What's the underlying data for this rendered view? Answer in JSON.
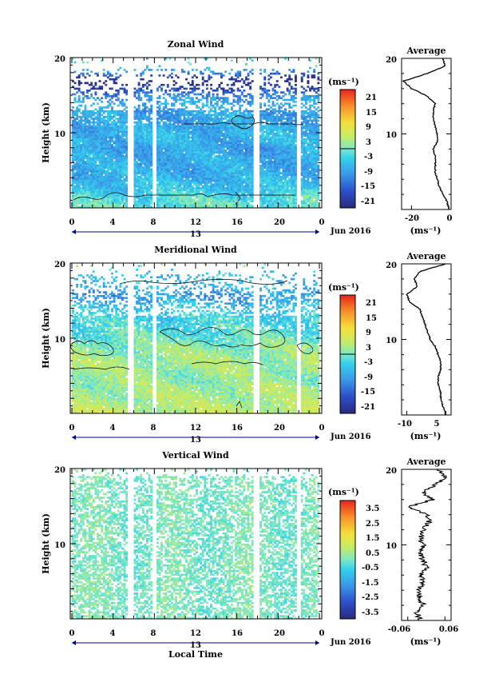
{
  "chart_data": [
    {
      "type": "heatmap",
      "title": "Zonal Wind",
      "ylabel": "Height (km)",
      "ylim": [
        0,
        20
      ],
      "y_ticks": [
        "20",
        "10"
      ],
      "xlim": [
        0,
        24
      ],
      "x_ticks": [
        "0",
        "4",
        "8",
        "12",
        "16",
        "20",
        "0"
      ],
      "date_center": "13",
      "date_label": "Jun 2016",
      "colorbar": {
        "unit": "(ms⁻¹)",
        "range": [
          -24,
          24
        ],
        "tick_labels": [
          "21",
          "15",
          "9",
          "3",
          "-3",
          "-9",
          "-15",
          "-21"
        ]
      },
      "data_gaps_hours": [
        [
          5.4,
          5.9
        ],
        [
          7.8,
          8.3
        ],
        [
          17.7,
          18.2
        ],
        [
          21.8,
          22.3
        ]
      ],
      "profile": {
        "title": "Average",
        "xlabel": "(ms⁻¹)",
        "xlim": [
          -25,
          0
        ],
        "x_ticks": [
          "-20",
          "0"
        ],
        "y_ticks": [
          "20",
          "10"
        ],
        "height_km": [
          0,
          1,
          2,
          3,
          4,
          5,
          6,
          7,
          8,
          9,
          10,
          11,
          12,
          13,
          14,
          15,
          16,
          17,
          18,
          19,
          20
        ],
        "values": [
          -1,
          -2,
          -4,
          -6,
          -7,
          -8,
          -8,
          -8,
          -9,
          -7,
          -7,
          -8,
          -9,
          -9,
          -8,
          -12,
          -20,
          -24,
          -12,
          -3,
          -4
        ]
      }
    },
    {
      "type": "heatmap",
      "title": "Meridional Wind",
      "ylabel": "Height (km)",
      "ylim": [
        0,
        20
      ],
      "y_ticks": [
        "20",
        "10"
      ],
      "xlim": [
        0,
        24
      ],
      "x_ticks": [
        "0",
        "4",
        "8",
        "12",
        "16",
        "20",
        "0"
      ],
      "date_center": "13",
      "date_label": "Jun 2016",
      "colorbar": {
        "unit": "(ms⁻¹)",
        "range": [
          -24,
          24
        ],
        "tick_labels": [
          "21",
          "15",
          "9",
          "3",
          "-3",
          "-9",
          "-15",
          "-21"
        ]
      },
      "data_gaps_hours": [
        [
          5.4,
          5.9
        ],
        [
          7.8,
          8.3
        ],
        [
          17.7,
          18.2
        ],
        [
          21.8,
          22.3
        ]
      ],
      "profile": {
        "title": "Average",
        "xlabel": "(ms⁻¹)",
        "xlim": [
          -12,
          7
        ],
        "x_ticks": [
          "-10",
          "5"
        ],
        "y_ticks": [
          "20",
          "10"
        ],
        "height_km": [
          0,
          1,
          2,
          3,
          4,
          5,
          6,
          7,
          8,
          9,
          10,
          11,
          12,
          13,
          14,
          15,
          16,
          17,
          18,
          19,
          20
        ],
        "values": [
          5,
          4,
          3,
          3,
          2,
          2,
          3,
          3,
          2,
          1,
          -1,
          -2,
          -3,
          -4,
          -5,
          -9,
          -10,
          -6,
          -7,
          -5,
          5
        ]
      }
    },
    {
      "type": "heatmap",
      "title": "Vertical Wind",
      "ylabel": "Height (km)",
      "ylim": [
        0,
        20
      ],
      "y_ticks": [
        "20",
        "10"
      ],
      "xlim": [
        0,
        24
      ],
      "x_ticks": [
        "0",
        "4",
        "8",
        "12",
        "16",
        "20",
        "0"
      ],
      "xlabel": "Local Time",
      "date_center": "13",
      "date_label": "Jun 2016",
      "colorbar": {
        "unit": "(ms⁻¹)",
        "range": [
          -4,
          4
        ],
        "tick_labels": [
          "3.5",
          "2.5",
          "1.5",
          "0.5",
          "-0.5",
          "-1.5",
          "-2.5",
          "-3.5"
        ]
      },
      "data_gaps_hours": [
        [
          5.4,
          5.9
        ],
        [
          7.8,
          8.3
        ],
        [
          17.7,
          18.2
        ],
        [
          21.8,
          22.3
        ]
      ],
      "profile": {
        "title": "Average",
        "xlabel": "(ms⁻¹)",
        "xlim": [
          -0.08,
          0.08
        ],
        "x_ticks": [
          "-0.06",
          "0.06"
        ],
        "y_ticks": [
          "20",
          "10"
        ],
        "height_km": [
          0,
          1,
          2,
          3,
          4,
          5,
          6,
          7,
          8,
          9,
          10,
          11,
          12,
          13,
          14,
          15,
          16,
          17,
          18,
          19,
          20
        ],
        "values": [
          -0.02,
          -0.03,
          -0.01,
          -0.02,
          -0.03,
          -0.01,
          -0.02,
          0.0,
          -0.01,
          -0.02,
          -0.01,
          -0.02,
          -0.01,
          0.01,
          0.0,
          -0.06,
          0.02,
          -0.01,
          0.03,
          0.06,
          0.04
        ]
      }
    }
  ]
}
